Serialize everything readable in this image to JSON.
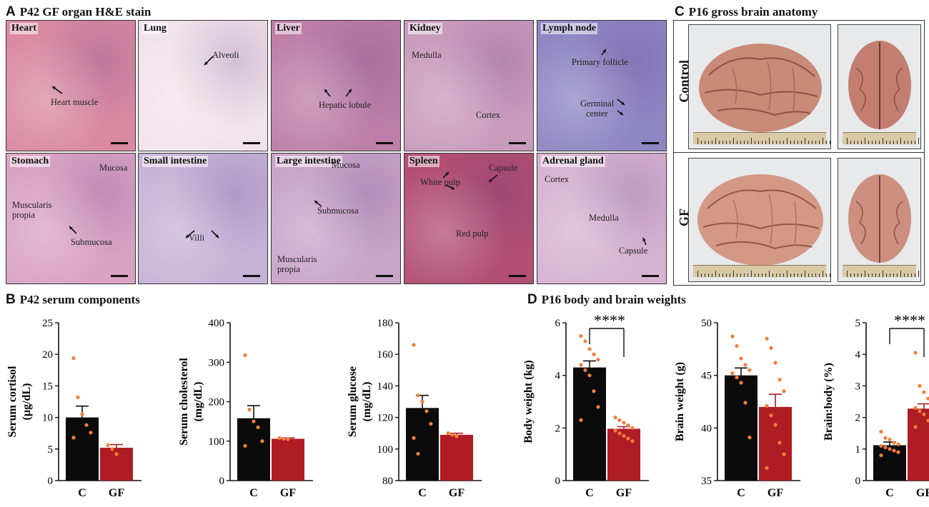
{
  "panels": {
    "A": {
      "letter": "A",
      "title": "P42 GF organ H&E stain"
    },
    "B": {
      "letter": "B",
      "title": "P42 serum components"
    },
    "C": {
      "letter": "C",
      "title": "P16 gross brain anatomy"
    },
    "D": {
      "letter": "D",
      "title": "P16 body and brain weights"
    }
  },
  "histology": [
    {
      "name": "Heart",
      "tone": "#d98aa2",
      "labels": [
        "Heart muscle"
      ]
    },
    {
      "name": "Lung",
      "tone": "#f1e3ea",
      "labels": [
        "Alveoli"
      ]
    },
    {
      "name": "Liver",
      "tone": "#bd7fa8",
      "labels": [
        "Hepatic lobule"
      ]
    },
    {
      "name": "Kidney",
      "tone": "#c99bbd",
      "labels": [
        "Medulla",
        "Cortex"
      ]
    },
    {
      "name": "Lymph node",
      "tone": "#8f86c4",
      "labels": [
        "Primary follicle",
        "Germinal",
        "center"
      ]
    },
    {
      "name": "Stomach",
      "tone": "#d9a3c4",
      "labels": [
        "Mucosa",
        "Muscularis",
        "propia",
        "Submucosa"
      ]
    },
    {
      "name": "Small intestine",
      "tone": "#c7b3d8",
      "labels": [
        "Villi"
      ]
    },
    {
      "name": "Large intestine",
      "tone": "#c9a4c9",
      "labels": [
        "Mucosa",
        "Submucosa",
        "Muscularis",
        "propia"
      ]
    },
    {
      "name": "Spleen",
      "tone": "#b24f72",
      "labels": [
        "White pulp",
        "Capsule",
        "Red pulp"
      ]
    },
    {
      "name": "Adrenal gland",
      "tone": "#d7b3d2",
      "labels": [
        "Cortex",
        "Medulla",
        "Capsule"
      ]
    }
  ],
  "brain": {
    "rows": [
      "Control",
      "GF"
    ]
  },
  "colors": {
    "control": "#0b0b0b",
    "gf": "#b01c24",
    "points": "#f07f3a"
  },
  "chart_data": [
    {
      "id": "cortisol",
      "type": "bar",
      "categories": [
        "C",
        "GF"
      ],
      "values": [
        10.0,
        5.2
      ],
      "errors": [
        1.8,
        0.5
      ],
      "ylabel": "Serum cortisol",
      "yunit": "(µg/dL)",
      "ylim": [
        0,
        25
      ],
      "ticks": [
        0,
        5,
        10,
        15,
        20,
        25
      ],
      "points": [
        [
          19.4,
          13.2,
          10.5,
          8.8,
          7.6,
          6.8
        ],
        [
          5.6,
          5.0,
          4.2
        ]
      ],
      "sig": ""
    },
    {
      "id": "cholesterol",
      "type": "bar",
      "categories": [
        "C",
        "GF"
      ],
      "values": [
        158,
        106
      ],
      "errors": [
        32,
        2
      ],
      "ylabel": "Serum cholesterol",
      "yunit": "(mg/dL)",
      "ylim": [
        0,
        400
      ],
      "ticks": [
        0,
        100,
        200,
        300,
        400
      ],
      "points": [
        [
          318,
          180,
          150,
          135,
          100,
          88
        ],
        [
          108,
          106,
          105
        ]
      ],
      "sig": ""
    },
    {
      "id": "glucose",
      "type": "bar",
      "categories": [
        "C",
        "GF"
      ],
      "values": [
        126,
        109
      ],
      "errors": [
        8,
        1
      ],
      "ylabel": "Serum glucose",
      "yunit": "(mg/dL)",
      "ylim": [
        80,
        180
      ],
      "ticks": [
        80,
        100,
        120,
        140,
        160,
        180
      ],
      "points": [
        [
          166,
          134,
          130,
          124,
          116,
          107,
          97
        ],
        [
          110,
          109,
          108
        ]
      ],
      "sig": ""
    },
    {
      "id": "bodyweight",
      "type": "bar",
      "categories": [
        "C",
        "GF"
      ],
      "values": [
        4.3,
        1.97
      ],
      "errors": [
        0.25,
        0.08
      ],
      "ylabel": "Body weight (kg)",
      "yunit": "",
      "ylim": [
        0,
        6
      ],
      "ticks": [
        0,
        2,
        4,
        6
      ],
      "points": [
        [
          5.5,
          5.3,
          5.0,
          4.8,
          4.6,
          4.4,
          4.2,
          4.0,
          3.4,
          2.8,
          2.3
        ],
        [
          2.4,
          2.3,
          2.2,
          2.1,
          2.0,
          1.9,
          1.8,
          1.7,
          1.6,
          1.5
        ]
      ],
      "sig": "****"
    },
    {
      "id": "brainweight",
      "type": "bar",
      "categories": [
        "C",
        "GF"
      ],
      "values": [
        45.0,
        42.0
      ],
      "errors": [
        0.7,
        1.2
      ],
      "ylabel": "Brain weight (g)",
      "yunit": "",
      "ylim": [
        35,
        50
      ],
      "ticks": [
        35,
        40,
        45,
        50
      ],
      "points": [
        [
          48.7,
          47.8,
          46.6,
          46.0,
          45.5,
          45.2,
          44.8,
          44.3,
          42.4,
          39.1
        ],
        [
          48.5,
          47.6,
          46.2,
          44.6,
          43.5,
          42.1,
          41.2,
          40.3,
          38.6,
          37.5,
          36.2
        ]
      ],
      "sig": ""
    },
    {
      "id": "brainbody",
      "type": "bar",
      "categories": [
        "C",
        "GF"
      ],
      "values": [
        1.12,
        2.28
      ],
      "errors": [
        0.1,
        0.15
      ],
      "ylabel": "Brain:body (%)",
      "yunit": "",
      "ylim": [
        0,
        5
      ],
      "ticks": [
        0,
        1,
        2,
        3,
        4,
        5
      ],
      "points": [
        [
          1.55,
          1.35,
          1.3,
          1.2,
          1.15,
          1.1,
          1.05,
          1.0,
          0.95,
          0.9,
          0.8
        ],
        [
          4.05,
          3.0,
          2.8,
          2.6,
          2.45,
          2.3,
          2.2,
          2.1,
          1.9,
          1.8,
          1.7
        ]
      ],
      "sig": "****"
    }
  ]
}
